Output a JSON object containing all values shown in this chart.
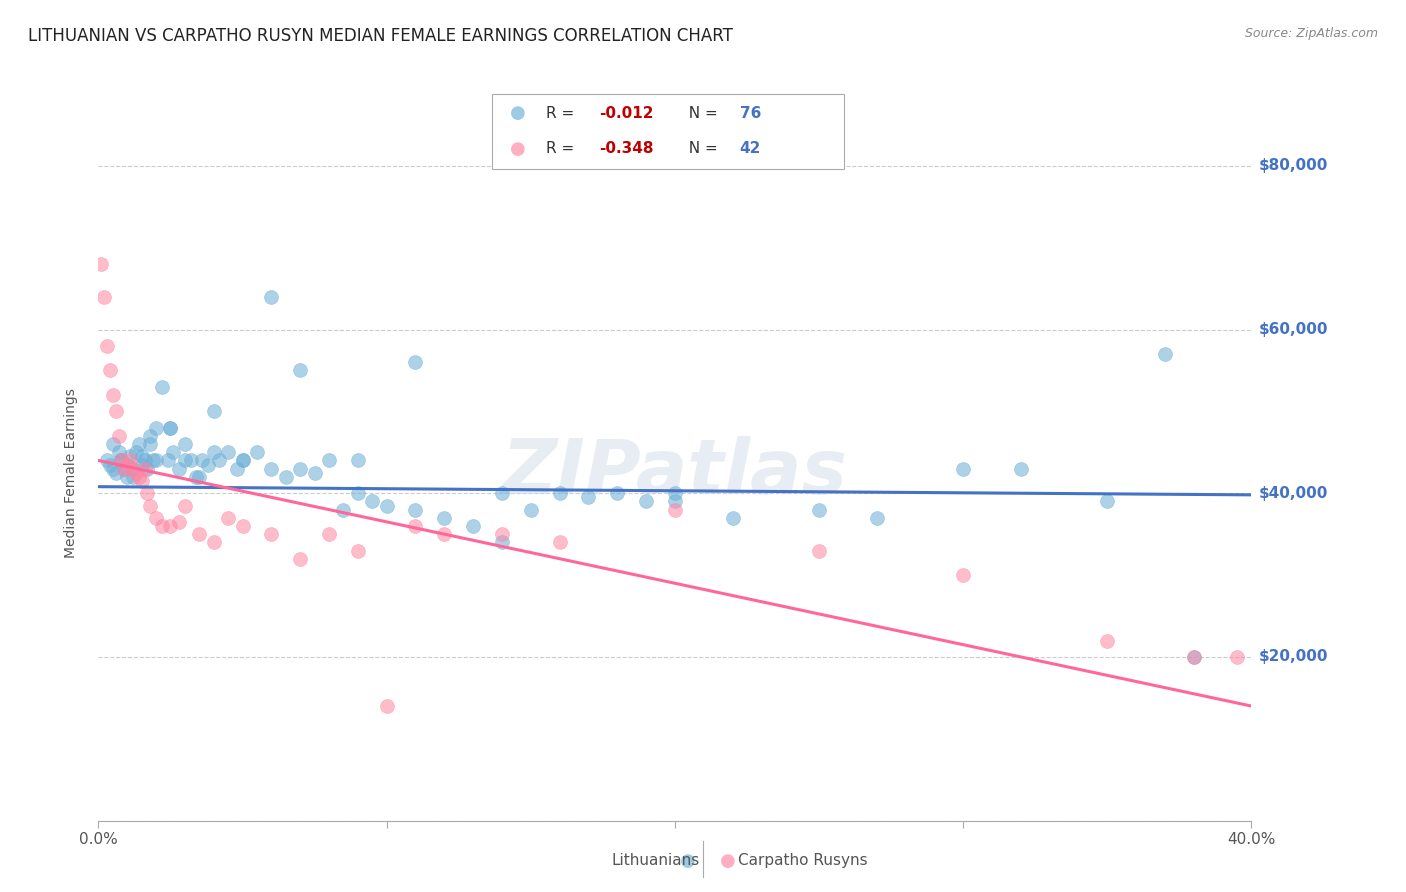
{
  "title": "LITHUANIAN VS CARPATHO RUSYN MEDIAN FEMALE EARNINGS CORRELATION CHART",
  "source": "Source: ZipAtlas.com",
  "ylabel": "Median Female Earnings",
  "y_ticks": [
    0,
    20000,
    40000,
    60000,
    80000
  ],
  "y_tick_labels": [
    "",
    "$20,000",
    "$40,000",
    "$60,000",
    "$80,000"
  ],
  "y_tick_color": "#4472c4",
  "x_min": 0.0,
  "x_max": 0.4,
  "y_min": 0,
  "y_max": 85000,
  "legend_r_color": "#c00000",
  "legend_n_color": "#4472c4",
  "blue_color": "#6baed6",
  "pink_color": "#ff85a1",
  "line_blue_color": "#4472c4",
  "line_pink_color": "#ff6699",
  "watermark": "ZIPatlas",
  "label1": "Lithuanians",
  "label2": "Carpatho Rusyns",
  "blue_scatter_x": [
    0.003,
    0.004,
    0.005,
    0.006,
    0.007,
    0.008,
    0.009,
    0.01,
    0.011,
    0.012,
    0.013,
    0.014,
    0.015,
    0.016,
    0.017,
    0.018,
    0.019,
    0.02,
    0.022,
    0.024,
    0.025,
    0.026,
    0.028,
    0.03,
    0.032,
    0.034,
    0.036,
    0.038,
    0.04,
    0.042,
    0.045,
    0.048,
    0.05,
    0.055,
    0.06,
    0.065,
    0.07,
    0.075,
    0.08,
    0.085,
    0.09,
    0.095,
    0.1,
    0.11,
    0.12,
    0.13,
    0.14,
    0.15,
    0.16,
    0.17,
    0.18,
    0.19,
    0.2,
    0.22,
    0.25,
    0.27,
    0.3,
    0.32,
    0.35,
    0.37,
    0.005,
    0.008,
    0.01,
    0.012,
    0.015,
    0.018,
    0.02,
    0.025,
    0.03,
    0.035,
    0.04,
    0.05,
    0.06,
    0.07,
    0.09,
    0.11,
    0.14,
    0.2,
    0.38
  ],
  "blue_scatter_y": [
    44000,
    43500,
    46000,
    42500,
    45000,
    44000,
    43000,
    42000,
    44500,
    43000,
    45000,
    46000,
    43500,
    44000,
    43000,
    47000,
    44000,
    48000,
    53000,
    44000,
    48000,
    45000,
    43000,
    46000,
    44000,
    42000,
    44000,
    43500,
    50000,
    44000,
    45000,
    43000,
    44000,
    45000,
    43000,
    42000,
    43000,
    42500,
    44000,
    38000,
    40000,
    39000,
    38500,
    38000,
    37000,
    36000,
    34000,
    38000,
    40000,
    39500,
    40000,
    39000,
    39000,
    37000,
    38000,
    37000,
    43000,
    43000,
    39000,
    57000,
    43000,
    44000,
    43500,
    42000,
    44500,
    46000,
    44000,
    48000,
    44000,
    42000,
    45000,
    44000,
    64000,
    55000,
    44000,
    56000,
    40000,
    40000,
    20000
  ],
  "pink_scatter_x": [
    0.001,
    0.002,
    0.003,
    0.004,
    0.005,
    0.006,
    0.007,
    0.008,
    0.009,
    0.01,
    0.011,
    0.012,
    0.013,
    0.014,
    0.015,
    0.016,
    0.017,
    0.018,
    0.02,
    0.022,
    0.025,
    0.028,
    0.03,
    0.035,
    0.04,
    0.045,
    0.05,
    0.06,
    0.07,
    0.08,
    0.09,
    0.1,
    0.11,
    0.12,
    0.14,
    0.16,
    0.2,
    0.25,
    0.3,
    0.35,
    0.38,
    0.395
  ],
  "pink_scatter_y": [
    68000,
    64000,
    58000,
    55000,
    52000,
    50000,
    47000,
    44000,
    43000,
    43500,
    44000,
    43000,
    42500,
    42000,
    41500,
    43000,
    40000,
    38500,
    37000,
    36000,
    36000,
    36500,
    38500,
    35000,
    34000,
    37000,
    36000,
    35000,
    32000,
    35000,
    33000,
    14000,
    36000,
    35000,
    35000,
    34000,
    38000,
    33000,
    30000,
    22000,
    20000,
    20000
  ],
  "blue_line_x": [
    0.0,
    0.4
  ],
  "blue_line_y": [
    40800,
    39800
  ],
  "pink_line_x": [
    0.0,
    0.4
  ],
  "pink_line_y": [
    44000,
    14000
  ],
  "grid_color": "#cccccc",
  "background_color": "#ffffff",
  "title_fontsize": 12,
  "source_fontsize": 9,
  "ylabel_fontsize": 10,
  "tick_fontsize": 11,
  "scatter_size": 100,
  "scatter_alpha": 0.55
}
